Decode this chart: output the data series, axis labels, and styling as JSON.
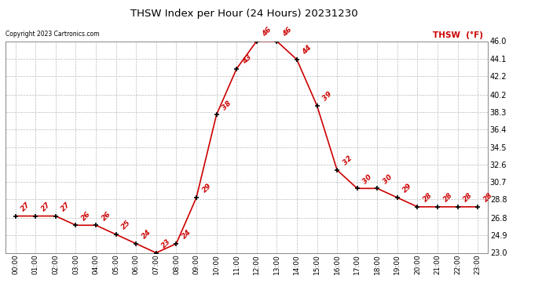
{
  "title": "THSW Index per Hour (24 Hours) 20231230",
  "copyright": "Copyright 2023 Cartronics.com",
  "legend_label": "THSW  (°F)",
  "hours": [
    0,
    1,
    2,
    3,
    4,
    5,
    6,
    7,
    8,
    9,
    10,
    11,
    12,
    13,
    14,
    15,
    16,
    17,
    18,
    19,
    20,
    21,
    22,
    23
  ],
  "values": [
    27,
    27,
    27,
    26,
    26,
    25,
    24,
    23,
    24,
    29,
    38,
    43,
    46,
    46,
    44,
    39,
    32,
    30,
    30,
    29,
    28,
    28,
    28,
    28
  ],
  "ylim_min": 23.0,
  "ylim_max": 46.0,
  "yticks": [
    23.0,
    24.9,
    26.8,
    28.8,
    30.7,
    32.6,
    34.5,
    36.4,
    38.3,
    40.2,
    42.2,
    44.1,
    46.0
  ],
  "line_color": "#cc0000",
  "marker_color": "#000000",
  "bg_color": "#ffffff",
  "grid_color": "#bbbbbb",
  "title_color": "#000000",
  "copyright_color": "#000000",
  "legend_color": "#cc0000",
  "label_color": "#cc0000"
}
